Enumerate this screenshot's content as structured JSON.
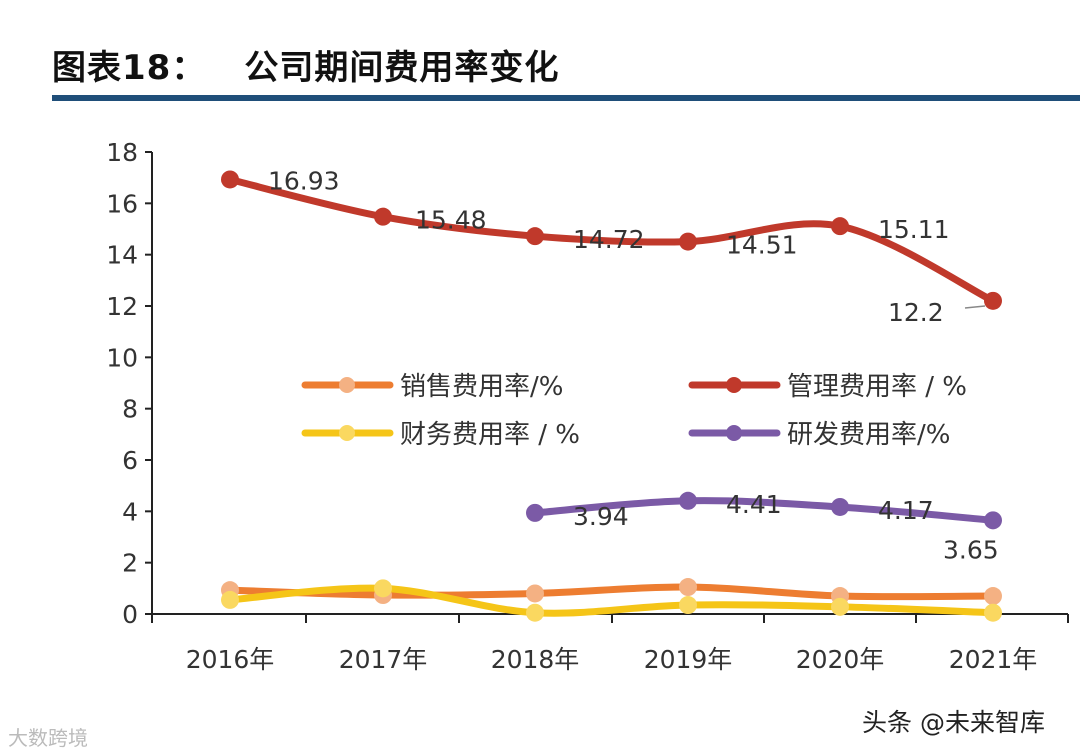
{
  "title": {
    "label": "图表18：",
    "text": "公司期间费用率变化"
  },
  "watermarks": {
    "left": "大数跨境",
    "right": "头条 @未来智库"
  },
  "chart_data": {
    "type": "line",
    "title": "公司期间费用率变化",
    "categories": [
      "2016年",
      "2017年",
      "2018年",
      "2019年",
      "2020年",
      "2021年"
    ],
    "ylim": [
      0,
      18
    ],
    "yticks": [
      0,
      2,
      4,
      6,
      8,
      10,
      12,
      14,
      16,
      18
    ],
    "grid": false,
    "legend_placement": "center",
    "series": [
      {
        "name": "销售费用率/%",
        "color": "#ed7d31",
        "marker": "#f4b183",
        "values": [
          0.93,
          0.74,
          0.8,
          1.05,
          0.7,
          0.7
        ],
        "labels": false
      },
      {
        "name": "管理费用率 / %",
        "color": "#c0392b",
        "marker": "#c0392b",
        "values": [
          16.93,
          15.48,
          14.72,
          14.51,
          15.11,
          12.2
        ],
        "labels": [
          "16.93",
          "15.48",
          "14.72",
          "14.51",
          "15.11",
          "12.2"
        ]
      },
      {
        "name": "财务费用率 / %",
        "color": "#f5c518",
        "marker": "#fad860",
        "values": [
          0.55,
          1.0,
          0.05,
          0.35,
          0.28,
          0.05
        ],
        "labels": false
      },
      {
        "name": "研发费用率/%",
        "color": "#7b5aa6",
        "marker": "#7b5aa6",
        "values": [
          null,
          null,
          3.94,
          4.41,
          4.17,
          3.65
        ],
        "labels": [
          null,
          null,
          "3.94",
          "4.41",
          "4.17",
          "3.65"
        ]
      }
    ]
  }
}
